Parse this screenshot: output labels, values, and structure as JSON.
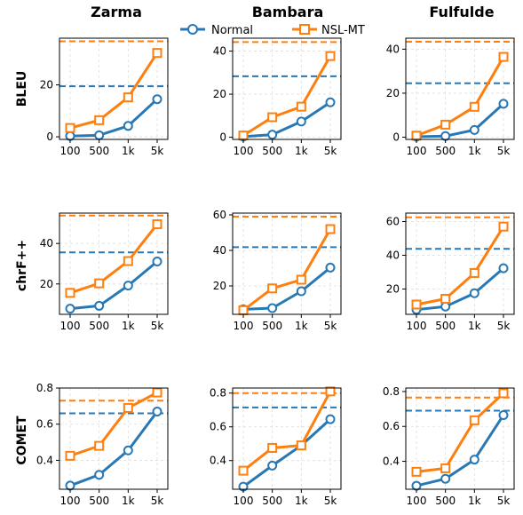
{
  "legend": {
    "items": [
      "Normal",
      "NSL-MT"
    ],
    "placement": "top-center"
  },
  "colors": {
    "Normal": "#2878b5",
    "NSL-MT": "#ff7f0e"
  },
  "columns": [
    "Zarma",
    "Bambara",
    "Fulfulde"
  ],
  "rows": [
    "BLEU",
    "chrF++",
    "COMET"
  ],
  "chart_data": [
    {
      "type": "line",
      "title": "Zarma",
      "ylabel": "BLEU",
      "categories": [
        "100",
        "500",
        "1k",
        "5k"
      ],
      "ylim": [
        -1,
        38
      ],
      "yticks": [
        0,
        20
      ],
      "grid": true,
      "series": [
        {
          "name": "Normal",
          "values": [
            0.3,
            0.6,
            4.2,
            14.5
          ]
        },
        {
          "name": "NSL-MT",
          "values": [
            3.4,
            6.4,
            15.2,
            32.3
          ]
        }
      ],
      "reference_lines": {
        "Normal": 19.5,
        "NSL-MT": 36.8
      }
    },
    {
      "type": "line",
      "title": "Bambara",
      "ylabel": "BLEU",
      "categories": [
        "100",
        "500",
        "1k",
        "5k"
      ],
      "ylim": [
        -1,
        46
      ],
      "yticks": [
        0,
        20,
        40
      ],
      "grid": true,
      "series": [
        {
          "name": "Normal",
          "values": [
            0.3,
            1.2,
            7.3,
            16.2
          ]
        },
        {
          "name": "NSL-MT",
          "values": [
            0.8,
            9.3,
            14.2,
            37.7
          ]
        }
      ],
      "reference_lines": {
        "Normal": 28.3,
        "NSL-MT": 44.2
      }
    },
    {
      "type": "line",
      "title": "Fulfulde",
      "ylabel": "BLEU",
      "categories": [
        "100",
        "500",
        "1k",
        "5k"
      ],
      "ylim": [
        -1,
        45
      ],
      "yticks": [
        0,
        20,
        40
      ],
      "grid": true,
      "series": [
        {
          "name": "Normal",
          "values": [
            0.2,
            0.5,
            3.3,
            15.2
          ]
        },
        {
          "name": "NSL-MT",
          "values": [
            0.7,
            5.7,
            13.8,
            36.5
          ]
        }
      ],
      "reference_lines": {
        "Normal": 24.5,
        "NSL-MT": 43.4
      }
    },
    {
      "type": "line",
      "title": "Zarma",
      "ylabel": "chrF++",
      "categories": [
        "100",
        "500",
        "1k",
        "5k"
      ],
      "ylim": [
        5,
        55
      ],
      "yticks": [
        20,
        40
      ],
      "grid": true,
      "series": [
        {
          "name": "Normal",
          "values": [
            7.8,
            9.2,
            19.2,
            31.1
          ]
        },
        {
          "name": "NSL-MT",
          "values": [
            15.6,
            20.3,
            31.3,
            49.5
          ]
        }
      ],
      "reference_lines": {
        "Normal": 35.6,
        "NSL-MT": 53.8
      }
    },
    {
      "type": "line",
      "title": "Bambara",
      "ylabel": "chrF++",
      "categories": [
        "100",
        "500",
        "1k",
        "5k"
      ],
      "ylim": [
        4,
        61
      ],
      "yticks": [
        20,
        40,
        60
      ],
      "grid": true,
      "series": [
        {
          "name": "Normal",
          "values": [
            6.8,
            7.5,
            17.0,
            30.3
          ]
        },
        {
          "name": "NSL-MT",
          "values": [
            6.3,
            18.6,
            23.5,
            52.0
          ]
        }
      ],
      "reference_lines": {
        "Normal": 41.8,
        "NSL-MT": 59.0
      }
    },
    {
      "type": "line",
      "title": "Fulfulde",
      "ylabel": "chrF++",
      "categories": [
        "100",
        "500",
        "1k",
        "5k"
      ],
      "ylim": [
        5,
        65
      ],
      "yticks": [
        20,
        40,
        60
      ],
      "grid": true,
      "series": [
        {
          "name": "Normal",
          "values": [
            7.8,
            9.6,
            17.5,
            32.3
          ]
        },
        {
          "name": "NSL-MT",
          "values": [
            10.8,
            14.2,
            29.5,
            57.0
          ]
        }
      ],
      "reference_lines": {
        "Normal": 43.8,
        "NSL-MT": 62.5
      }
    },
    {
      "type": "line",
      "title": "Zarma",
      "ylabel": "COMET",
      "categories": [
        "100",
        "500",
        "1k",
        "5k"
      ],
      "ylim": [
        0.24,
        0.8
      ],
      "yticks": [
        0.4,
        0.6,
        0.8
      ],
      "grid": true,
      "series": [
        {
          "name": "Normal",
          "values": [
            0.26,
            0.32,
            0.455,
            0.67
          ]
        },
        {
          "name": "NSL-MT",
          "values": [
            0.425,
            0.48,
            0.69,
            0.775
          ]
        }
      ],
      "reference_lines": {
        "Normal": 0.66,
        "NSL-MT": 0.73
      }
    },
    {
      "type": "line",
      "title": "Bambara",
      "ylabel": "COMET",
      "categories": [
        "100",
        "500",
        "1k",
        "5k"
      ],
      "ylim": [
        0.23,
        0.83
      ],
      "yticks": [
        0.4,
        0.6,
        0.8
      ],
      "grid": true,
      "series": [
        {
          "name": "Normal",
          "values": [
            0.245,
            0.37,
            0.49,
            0.645
          ]
        },
        {
          "name": "NSL-MT",
          "values": [
            0.34,
            0.475,
            0.49,
            0.81
          ]
        }
      ],
      "reference_lines": {
        "Normal": 0.715,
        "NSL-MT": 0.8
      }
    },
    {
      "type": "line",
      "title": "Fulfulde",
      "ylabel": "COMET",
      "categories": [
        "100",
        "500",
        "1k",
        "5k"
      ],
      "ylim": [
        0.24,
        0.82
      ],
      "yticks": [
        0.4,
        0.6,
        0.8
      ],
      "grid": true,
      "series": [
        {
          "name": "Normal",
          "values": [
            0.26,
            0.3,
            0.41,
            0.665
          ]
        },
        {
          "name": "NSL-MT",
          "values": [
            0.34,
            0.36,
            0.635,
            0.79
          ]
        }
      ],
      "reference_lines": {
        "Normal": 0.69,
        "NSL-MT": 0.765
      }
    }
  ]
}
